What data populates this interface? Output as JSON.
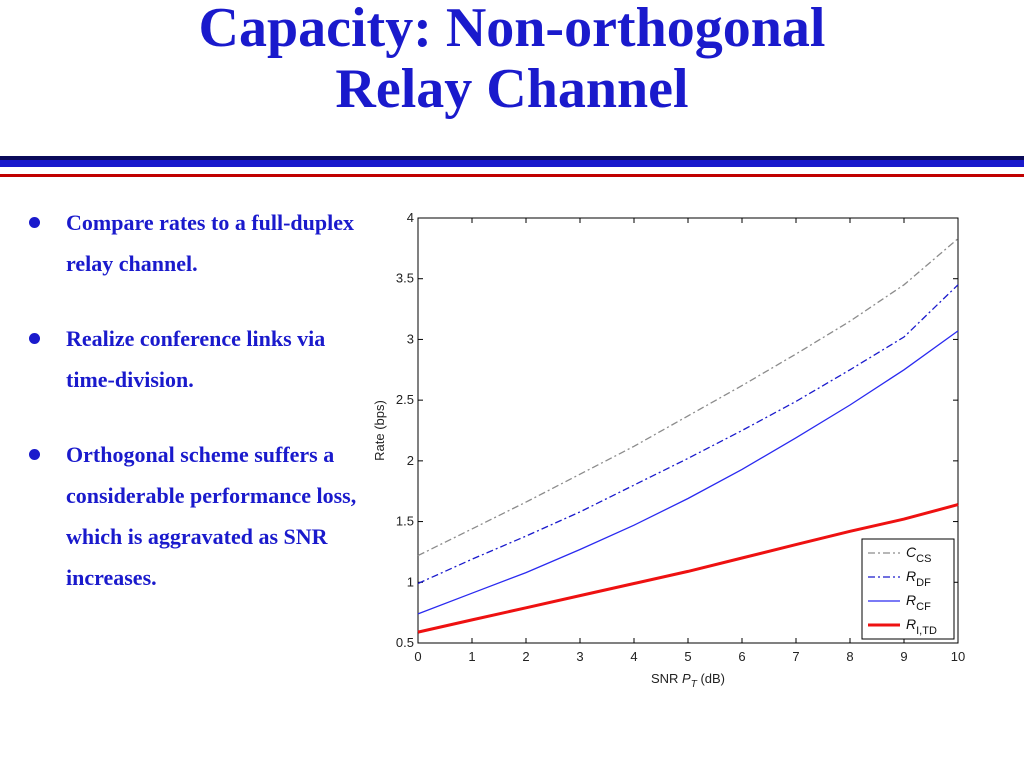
{
  "slide": {
    "title_line1": "Capacity: Non-orthogonal",
    "title_line2": "Relay Channel",
    "bullets": [
      "Compare rates to a full-duplex relay channel.",
      "Realize conference links via time-division.",
      "Orthogonal scheme suffers a considerable performance loss, which is aggravated as SNR increases."
    ],
    "colors": {
      "title": "#1a1acc",
      "rule_top": "#0a0a5a",
      "rule_mid": "#1a1acc",
      "rule_red": "#c00000"
    }
  },
  "chart_data": {
    "type": "line",
    "title": "",
    "xlabel": "SNR P_T (dB)",
    "ylabel": "Rate (bps)",
    "xlim": [
      0,
      10
    ],
    "ylim": [
      0.5,
      4
    ],
    "xticks": [
      "0",
      "1",
      "2",
      "3",
      "4",
      "5",
      "6",
      "7",
      "8",
      "9",
      "10"
    ],
    "yticks": [
      "0.5",
      "1",
      "1.5",
      "2",
      "2.5",
      "3",
      "3.5",
      "4"
    ],
    "grid": false,
    "legend_position": "bottom-right",
    "x": [
      0,
      1,
      2,
      3,
      4,
      5,
      6,
      7,
      8,
      9,
      10
    ],
    "series": [
      {
        "name": "C_CS",
        "label_main": "C",
        "label_sub": "CS",
        "color": "#8c8c8c",
        "style": "dashdot",
        "values": [
          1.22,
          1.44,
          1.66,
          1.89,
          2.12,
          2.37,
          2.62,
          2.88,
          3.15,
          3.45,
          3.83
        ]
      },
      {
        "name": "R_DF",
        "label_main": "R",
        "label_sub": "DF",
        "color": "#1a1acc",
        "style": "dashdot",
        "values": [
          0.99,
          1.19,
          1.38,
          1.58,
          1.8,
          2.02,
          2.25,
          2.49,
          2.75,
          3.02,
          3.45
        ]
      },
      {
        "name": "R_CF",
        "label_main": "R",
        "label_sub": "CF",
        "color": "#2a2af0",
        "style": "solid",
        "values": [
          0.74,
          0.91,
          1.08,
          1.27,
          1.47,
          1.69,
          1.93,
          2.19,
          2.46,
          2.75,
          3.07
        ]
      },
      {
        "name": "R_I,TD",
        "label_main": "R",
        "label_sub": "I,TD",
        "color": "#ee1111",
        "style": "solid",
        "values": [
          0.59,
          0.69,
          0.79,
          0.89,
          0.99,
          1.09,
          1.2,
          1.31,
          1.42,
          1.52,
          1.64
        ]
      }
    ]
  }
}
